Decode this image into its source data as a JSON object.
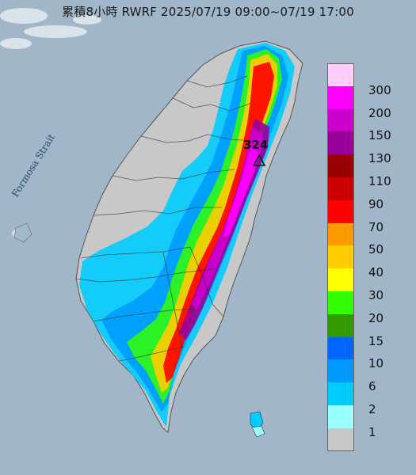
{
  "title": "累積8小時 RWRF 2025/07/19 09:00~07/19 17:00",
  "map_labels": {
    "strait": "Formosa Strait",
    "max_value": "324"
  },
  "legend": {
    "entries": [
      {
        "label": "300",
        "color": "#ffccff"
      },
      {
        "label": "200",
        "color": "#ff00ff"
      },
      {
        "label": "150",
        "color": "#cc00cc"
      },
      {
        "label": "130",
        "color": "#990099"
      },
      {
        "label": "110",
        "color": "#990000"
      },
      {
        "label": "90",
        "color": "#cc0000"
      },
      {
        "label": "70",
        "color": "#ff0000"
      },
      {
        "label": "50",
        "color": "#ff9900"
      },
      {
        "label": "40",
        "color": "#ffcc00"
      },
      {
        "label": "30",
        "color": "#ffff00"
      },
      {
        "label": "20",
        "color": "#33ff00"
      },
      {
        "label": "15",
        "color": "#339900"
      },
      {
        "label": "10",
        "color": "#0066ff"
      },
      {
        "label": "6",
        "color": "#0099ff"
      },
      {
        "label": "2",
        "color": "#00ccff"
      },
      {
        "label": "1",
        "color": "#99ffff"
      },
      {
        "label": "",
        "color": "#c8c8c8"
      }
    ]
  },
  "colors": {
    "sea": "#9eb3c6",
    "land_dry": "#c8c8c8",
    "accent_peak": "#990099"
  }
}
